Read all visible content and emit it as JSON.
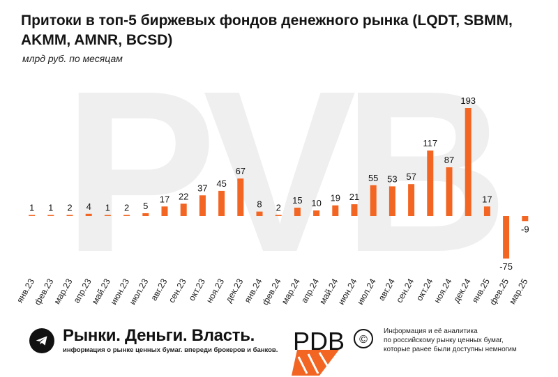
{
  "title": "Притоки в топ-5 биржевых фондов денежного рынка (LQDT, SBMM, AKMM, AMNR, BCSD)",
  "subtitle": "млрд руб. по месяцам",
  "colors": {
    "bar": "#f26522",
    "label": "#111111",
    "axis": "#222222",
    "watermark": "#efefef"
  },
  "watermark": "PVB",
  "chart_data": {
    "type": "bar",
    "categories": [
      "янв.23",
      "фев.23",
      "мар.23",
      "апр.23",
      "май.23",
      "июн.23",
      "июл.23",
      "авг.23",
      "сен.23",
      "окт.23",
      "ноя.23",
      "дек.23",
      "янв.24",
      "фев.24",
      "мар.24",
      "апр.24",
      "май.24",
      "июн.24",
      "июл.24",
      "авг.24",
      "сен.24",
      "окт.24",
      "ноя.24",
      "дек.24",
      "янв.25",
      "фев.25",
      "мар.25"
    ],
    "values": [
      1,
      1,
      2,
      4,
      1,
      2,
      5,
      17,
      22,
      37,
      45,
      67,
      8,
      2,
      15,
      10,
      19,
      21,
      55,
      53,
      57,
      117,
      87,
      193,
      17,
      -75,
      -9
    ],
    "title": "Притоки в топ-5 биржевых фондов денежного рынка (LQDT, SBMM, AKMM, AMNR, BCSD)",
    "subtitle": "млрд руб. по месяцам",
    "ylim": [
      -75,
      193
    ],
    "grid": false,
    "legend": "none"
  },
  "footer": {
    "brand_name": "Рынки. Деньги. Власть.",
    "brand_tagline": "информация о рынке ценных бумаг. впереди брокеров и банков.",
    "telegram_icon": "telegram-icon",
    "logo": "PDB",
    "info_lines": [
      "Информация и её аналитика",
      "по российскому рынку ценных бумаг,",
      "которые ранее были доступны немногим"
    ]
  }
}
